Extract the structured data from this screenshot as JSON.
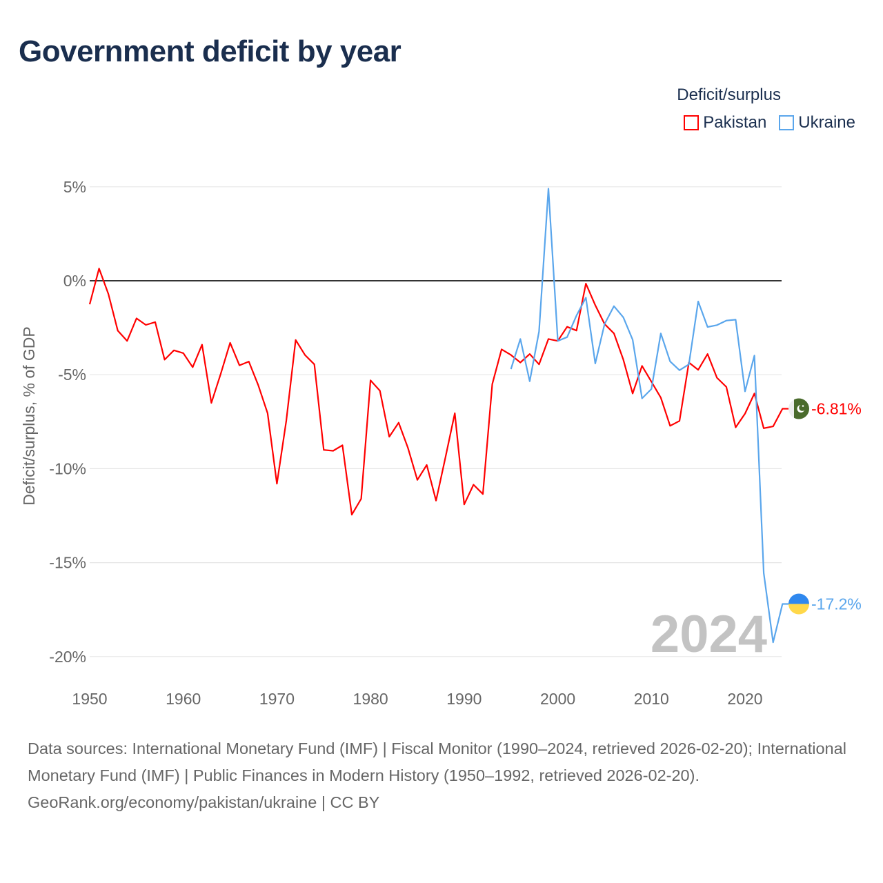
{
  "title": "Government deficit by year",
  "legend": {
    "title": "Deficit/surplus",
    "items": [
      {
        "label": "Pakistan",
        "color": "#ff0000"
      },
      {
        "label": "Ukraine",
        "color": "#5aa6ec"
      }
    ]
  },
  "footer": {
    "sources": "Data sources: International Monetary Fund (IMF) | Fiscal Monitor (1990–2024, retrieved 2026-02-20); International Monetary Fund (IMF) | Public Finances in Modern History (1950–1992, retrieved 2026-02-20).",
    "credit": "GeoRank.org/economy/pakistan/ukraine | CC BY"
  },
  "chart_data": {
    "type": "line",
    "title": "Government deficit by year",
    "xlabel": "",
    "ylabel": "Deficit/surplus, % of GDP",
    "xlim": [
      1950,
      2024
    ],
    "ylim": [
      -20,
      5
    ],
    "x_ticks": [
      1950,
      1960,
      1970,
      1980,
      1990,
      2000,
      2010,
      2020
    ],
    "x_tick_labels": [
      "1950",
      "1960",
      "1970",
      "1980",
      "1990",
      "2000",
      "2010",
      "2020"
    ],
    "y_ticks": [
      5,
      0,
      -5,
      -10,
      -15,
      -20
    ],
    "y_tick_labels": [
      "5%",
      "0%",
      "-5%",
      "-10%",
      "-15%",
      "-20%"
    ],
    "current_year_label": "2024",
    "grid": true,
    "legend_position": "top-right",
    "series": [
      {
        "name": "Pakistan",
        "color": "#ff0000",
        "start_year": 1950,
        "end_label": "-6.81%",
        "values": [
          -1.25,
          0.65,
          -0.7,
          -2.65,
          -3.2,
          -2.0,
          -2.35,
          -2.2,
          -4.2,
          -3.7,
          -3.85,
          -4.6,
          -3.4,
          -6.5,
          -4.95,
          -3.3,
          -4.5,
          -4.3,
          -5.55,
          -7.05,
          -10.8,
          -7.45,
          -3.15,
          -3.95,
          -4.45,
          -9.0,
          -9.05,
          -8.75,
          -12.45,
          -11.6,
          -5.3,
          -5.85,
          -8.3,
          -7.55,
          -8.9,
          -10.6,
          -9.8,
          -11.7,
          -9.4,
          -7.05,
          -11.9,
          -10.85,
          -11.35,
          -5.5,
          -3.65,
          -3.95,
          -4.35,
          -3.9,
          -4.45,
          -3.1,
          -3.2,
          -2.45,
          -2.65,
          -0.15,
          -1.3,
          -2.3,
          -2.8,
          -4.2,
          -6.0,
          -4.53,
          -5.37,
          -6.22,
          -7.72,
          -7.46,
          -4.35,
          -4.74,
          -3.9,
          -5.16,
          -5.65,
          -7.8,
          -7.07,
          -6.0,
          -7.85,
          -7.75,
          -6.81
        ]
      },
      {
        "name": "Ukraine",
        "color": "#5aa6ec",
        "start_year": 1995,
        "end_label": "-17.2%",
        "values": [
          -4.7,
          -3.1,
          -5.35,
          -2.7,
          4.9,
          -3.2,
          -3.0,
          -1.85,
          -0.9,
          -4.4,
          -2.3,
          -1.35,
          -1.95,
          -3.14,
          -6.26,
          -5.76,
          -2.8,
          -4.29,
          -4.76,
          -4.45,
          -1.1,
          -2.46,
          -2.36,
          -2.12,
          -2.07,
          -5.89,
          -3.98,
          -15.55,
          -19.24,
          -17.2
        ]
      }
    ]
  }
}
